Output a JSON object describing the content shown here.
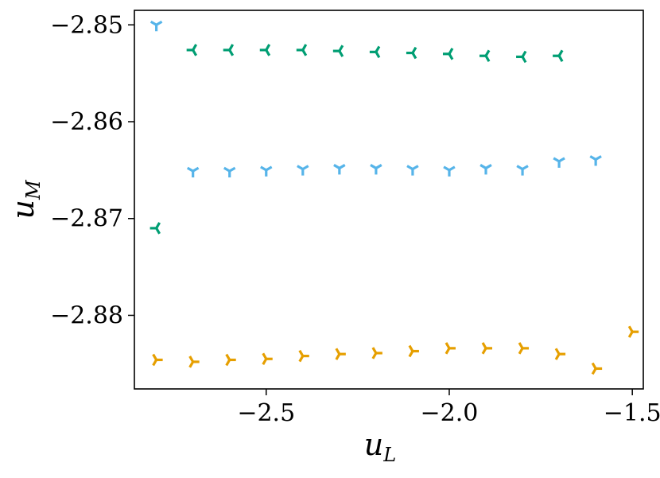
{
  "chart_data": {
    "type": "scatter",
    "title": "",
    "xlabel": "u",
    "xlabel_sub": "L",
    "ylabel": "u",
    "ylabel_sub": "M",
    "xlim": [
      -2.86,
      -1.47
    ],
    "ylim": [
      -2.8876,
      -2.8485
    ],
    "xticks": [
      -2.5,
      -2.0,
      -1.5
    ],
    "xtick_labels": [
      "−2.5",
      "−2.0",
      "−1.5"
    ],
    "yticks": [
      -2.85,
      -2.86,
      -2.87,
      -2.88
    ],
    "ytick_labels": [
      "−2.85",
      "−2.86",
      "−2.87",
      "−2.88"
    ],
    "grid": false,
    "series": [
      {
        "color": "#009E73",
        "marker": "tri_left",
        "x": [
          -2.8,
          -2.7,
          -2.6,
          -2.5,
          -2.4,
          -2.3,
          -2.2,
          -2.1,
          -2.0,
          -1.9,
          -1.8,
          -1.7
        ],
        "y": [
          -2.871,
          -2.8526,
          -2.8526,
          -2.8526,
          -2.8526,
          -2.8527,
          -2.8528,
          -2.8529,
          -2.853,
          -2.8532,
          -2.8533,
          -2.8532
        ]
      },
      {
        "color": "#56B4E9",
        "marker": "tri_down",
        "x": [
          -2.8,
          -2.7,
          -2.6,
          -2.5,
          -2.4,
          -2.3,
          -2.2,
          -2.1,
          -2.0,
          -1.9,
          -1.8,
          -1.7,
          -1.6
        ],
        "y": [
          -2.85,
          -2.8651,
          -2.8651,
          -2.865,
          -2.8649,
          -2.8648,
          -2.8648,
          -2.8649,
          -2.865,
          -2.8648,
          -2.8649,
          -2.8641,
          -2.8639
        ]
      },
      {
        "color": "#E69F00",
        "marker": "tri_right",
        "x": [
          -2.8,
          -2.7,
          -2.6,
          -2.5,
          -2.4,
          -2.3,
          -2.2,
          -2.1,
          -2.0,
          -1.9,
          -1.8,
          -1.7,
          -1.6,
          -1.5
        ],
        "y": [
          -2.8846,
          -2.8848,
          -2.8846,
          -2.8845,
          -2.8842,
          -2.884,
          -2.8839,
          -2.8837,
          -2.8834,
          -2.8834,
          -2.8834,
          -2.884,
          -2.8855,
          -2.8817
        ]
      }
    ]
  }
}
